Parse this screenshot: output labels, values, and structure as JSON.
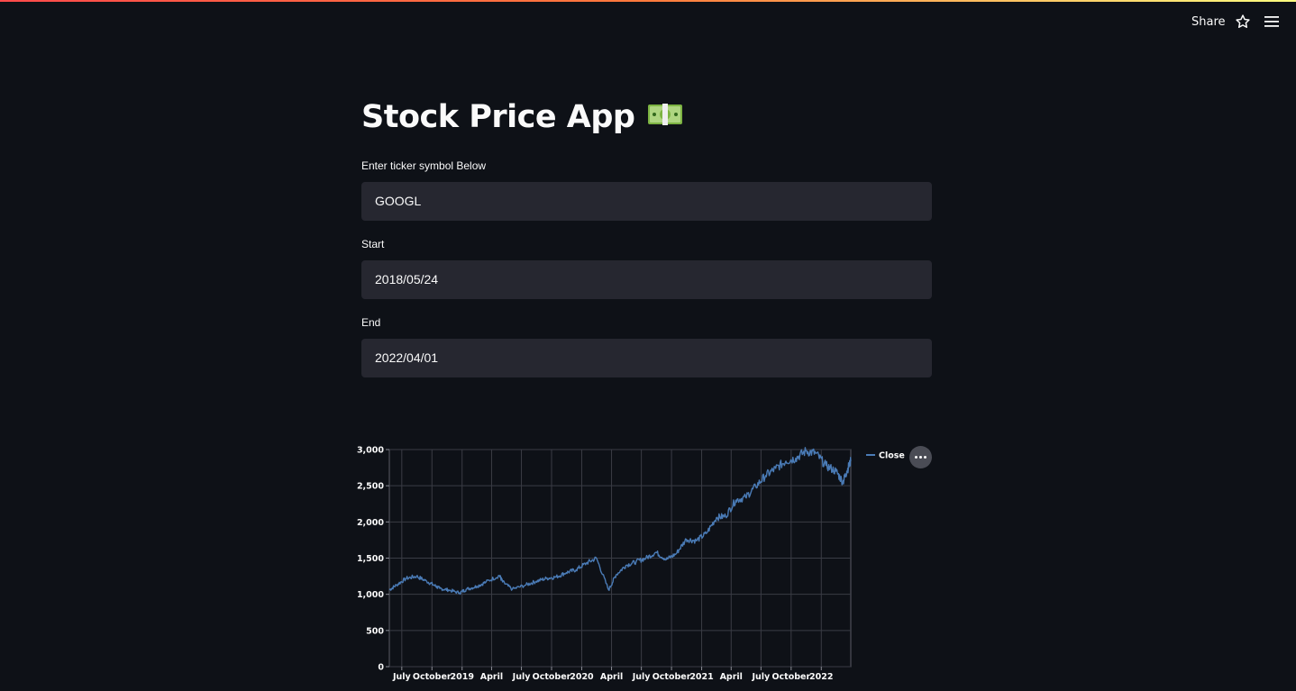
{
  "header": {
    "share_label": "Share"
  },
  "page": {
    "title": "Stock Price App"
  },
  "form": {
    "ticker_label": "Enter ticker symbol Below",
    "ticker_value": "GOOGL",
    "start_label": "Start",
    "start_value": "2018/05/24",
    "end_label": "End",
    "end_value": "2022/04/01"
  },
  "colors": {
    "accent": "#ff4b4b",
    "line": "#4a7bb6",
    "input_bg": "#262730",
    "page_bg": "#0e1117"
  },
  "chart_data": {
    "type": "line",
    "series": [
      {
        "name": "Close",
        "color": "#4a7bb6",
        "x": [
          "2018-05-24",
          "2018-06-15",
          "2018-07-15",
          "2018-08-15",
          "2018-09-15",
          "2018-10-10",
          "2018-10-25",
          "2018-11-20",
          "2018-12-24",
          "2019-01-15",
          "2019-02-15",
          "2019-03-15",
          "2019-04-25",
          "2019-05-05",
          "2019-06-03",
          "2019-07-15",
          "2019-08-15",
          "2019-09-15",
          "2019-10-15",
          "2019-11-15",
          "2019-12-15",
          "2020-01-15",
          "2020-02-15",
          "2020-03-23",
          "2020-04-15",
          "2020-05-15",
          "2020-06-15",
          "2020-07-15",
          "2020-08-15",
          "2020-09-15",
          "2020-10-15",
          "2020-11-15",
          "2020-12-15",
          "2021-01-15",
          "2021-02-15",
          "2021-03-15",
          "2021-04-15",
          "2021-05-15",
          "2021-06-15",
          "2021-07-15",
          "2021-08-15",
          "2021-09-15",
          "2021-10-15",
          "2021-11-15",
          "2021-12-15",
          "2022-01-15",
          "2022-02-15",
          "2022-03-08",
          "2022-03-20",
          "2022-04-01"
        ],
        "y": [
          1060,
          1130,
          1220,
          1250,
          1180,
          1120,
          1080,
          1060,
          1020,
          1070,
          1110,
          1170,
          1260,
          1170,
          1070,
          1130,
          1180,
          1220,
          1240,
          1300,
          1340,
          1430,
          1500,
          1060,
          1270,
          1400,
          1450,
          1500,
          1580,
          1480,
          1560,
          1760,
          1740,
          1840,
          2060,
          2080,
          2300,
          2340,
          2490,
          2640,
          2740,
          2840,
          2880,
          2980,
          2950,
          2780,
          2700,
          2550,
          2700,
          2840
        ]
      }
    ],
    "xlim": [
      "2018-05-24",
      "2022-04-01"
    ],
    "ylim": [
      0,
      3000
    ],
    "yticks": [
      0,
      500,
      1000,
      1500,
      2000,
      2500,
      3000
    ],
    "yticklabels": [
      "0",
      "500",
      "1,000",
      "1,500",
      "2,000",
      "2,500",
      "3,000"
    ],
    "xticks": [
      {
        "date": "2018-07-01",
        "label": "July"
      },
      {
        "date": "2018-10-01",
        "label": "October"
      },
      {
        "date": "2019-01-01",
        "label": "2019"
      },
      {
        "date": "2019-04-01",
        "label": "April"
      },
      {
        "date": "2019-07-01",
        "label": "July"
      },
      {
        "date": "2019-10-01",
        "label": "October"
      },
      {
        "date": "2020-01-01",
        "label": "2020"
      },
      {
        "date": "2020-04-01",
        "label": "April"
      },
      {
        "date": "2020-07-01",
        "label": "July"
      },
      {
        "date": "2020-10-01",
        "label": "October"
      },
      {
        "date": "2021-01-01",
        "label": "2021"
      },
      {
        "date": "2021-04-01",
        "label": "April"
      },
      {
        "date": "2021-07-01",
        "label": "July"
      },
      {
        "date": "2021-10-01",
        "label": "October"
      },
      {
        "date": "2022-01-01",
        "label": "2022"
      }
    ],
    "grid": true,
    "legend": "right"
  }
}
